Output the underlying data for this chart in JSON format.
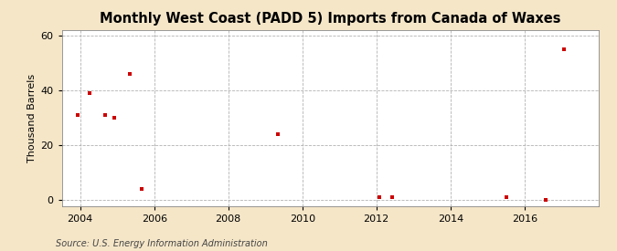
{
  "title": "Monthly West Coast (PADD 5) Imports from Canada of Waxes",
  "ylabel": "Thousand Barrels",
  "source": "Source: U.S. Energy Information Administration",
  "fig_bg_color": "#f5e6c8",
  "plot_bg_color": "#ffffff",
  "marker_color": "#cc0000",
  "grid_color": "#aaaaaa",
  "xlim": [
    2003.5,
    2018.0
  ],
  "ylim": [
    -2,
    62
  ],
  "xticks": [
    2004,
    2006,
    2008,
    2010,
    2012,
    2014,
    2016
  ],
  "yticks": [
    0,
    20,
    40,
    60
  ],
  "data_x": [
    2003.92,
    2004.25,
    2004.67,
    2004.92,
    2005.33,
    2005.67,
    2009.33,
    2012.08,
    2012.42,
    2015.5,
    2016.58,
    2017.08
  ],
  "data_y": [
    31,
    39,
    31,
    30,
    46,
    4,
    24,
    1,
    1,
    1,
    0,
    55
  ]
}
